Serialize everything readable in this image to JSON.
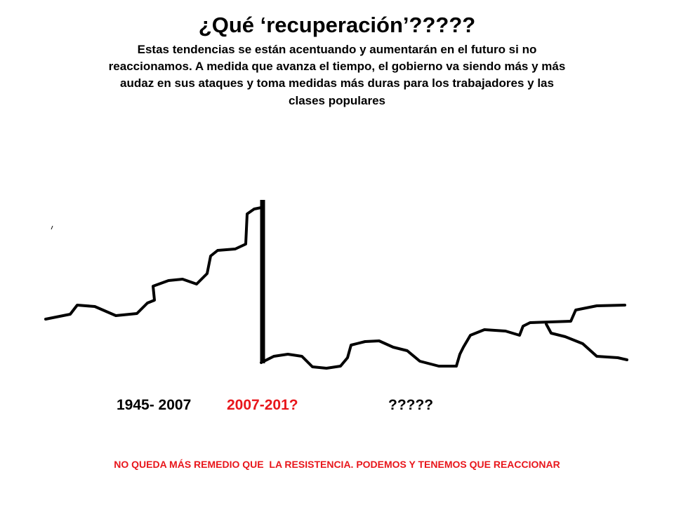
{
  "header": {
    "title": "¿Qué ‘recuperación’?????",
    "subtitle_lines": [
      "Estas tendencias se están acentuando y aumentarán en el futuro si no",
      "reaccionamos. A medida que avanza el tiempo, el gobierno va siendo más y más",
      "audaz en sus ataques y toma medidas más duras para los trabajadores y las",
      "clases populares"
    ]
  },
  "labels": [
    "1945- 2007",
    "2007-201?",
    "?????"
  ],
  "footer": "NO QUEDA MÁS REMEDIO QUE  LA RESISTENCIA. PODEMOS Y TENEMOS QUE REACCIONAR"
}
